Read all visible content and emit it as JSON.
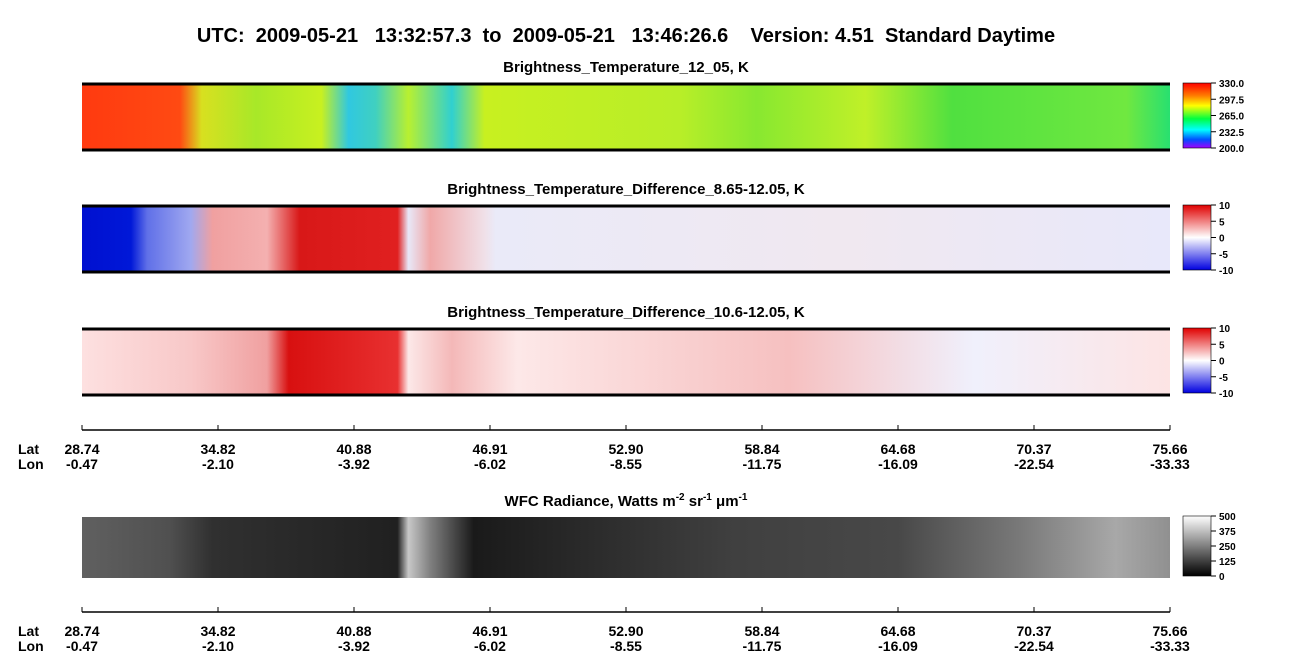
{
  "title": "UTC:  2009-05-21   13:32:57.3  to  2009-05-21   13:46:26.6    Version: 4.51  Standard Daytime",
  "panels": [
    {
      "title": [
        {
          "text": "Brightness_Temperature_12_05, K"
        }
      ],
      "colorbar": [
        "330.0",
        "297.5",
        "265.0",
        "232.5",
        "200.0"
      ]
    },
    {
      "title": [
        {
          "text": "Brightness_Temperature_Difference_8.65-12.05, K"
        }
      ],
      "colorbar": [
        "10",
        "5",
        "0",
        "-5",
        "-10"
      ]
    },
    {
      "title": [
        {
          "text": "Brightness_Temperature_Difference_10.6-12.05, K"
        }
      ],
      "colorbar": [
        "10",
        "5",
        "0",
        "-5",
        "-10"
      ]
    },
    {
      "title": [
        {
          "text": "WFC Radiance, Watts m"
        },
        {
          "sup": "-2"
        },
        {
          "text": " sr"
        },
        {
          "sup": "-1"
        },
        {
          "text": " μm"
        },
        {
          "sup": "-1"
        }
      ],
      "colorbar": [
        "500",
        "375",
        "250",
        "125",
        "0"
      ]
    }
  ],
  "axes": [
    {
      "lat_label": "Lat",
      "lon_label": "Lon",
      "lat": [
        "28.74",
        "34.82",
        "40.88",
        "46.91",
        "52.90",
        "58.84",
        "64.68",
        "70.37",
        "75.66"
      ],
      "lon": [
        "-0.47",
        "-2.10",
        "-3.92",
        "-6.02",
        "-8.55",
        "-11.75",
        "-16.09",
        "-22.54",
        "-33.33"
      ]
    },
    {
      "lat_label": "Lat",
      "lon_label": "Lon",
      "lat": [
        "28.74",
        "34.82",
        "40.88",
        "46.91",
        "52.90",
        "58.84",
        "64.68",
        "70.37",
        "75.66"
      ],
      "lon": [
        "-0.47",
        "-2.10",
        "-3.92",
        "-6.02",
        "-8.55",
        "-11.75",
        "-16.09",
        "-22.54",
        "-33.33"
      ]
    }
  ]
}
